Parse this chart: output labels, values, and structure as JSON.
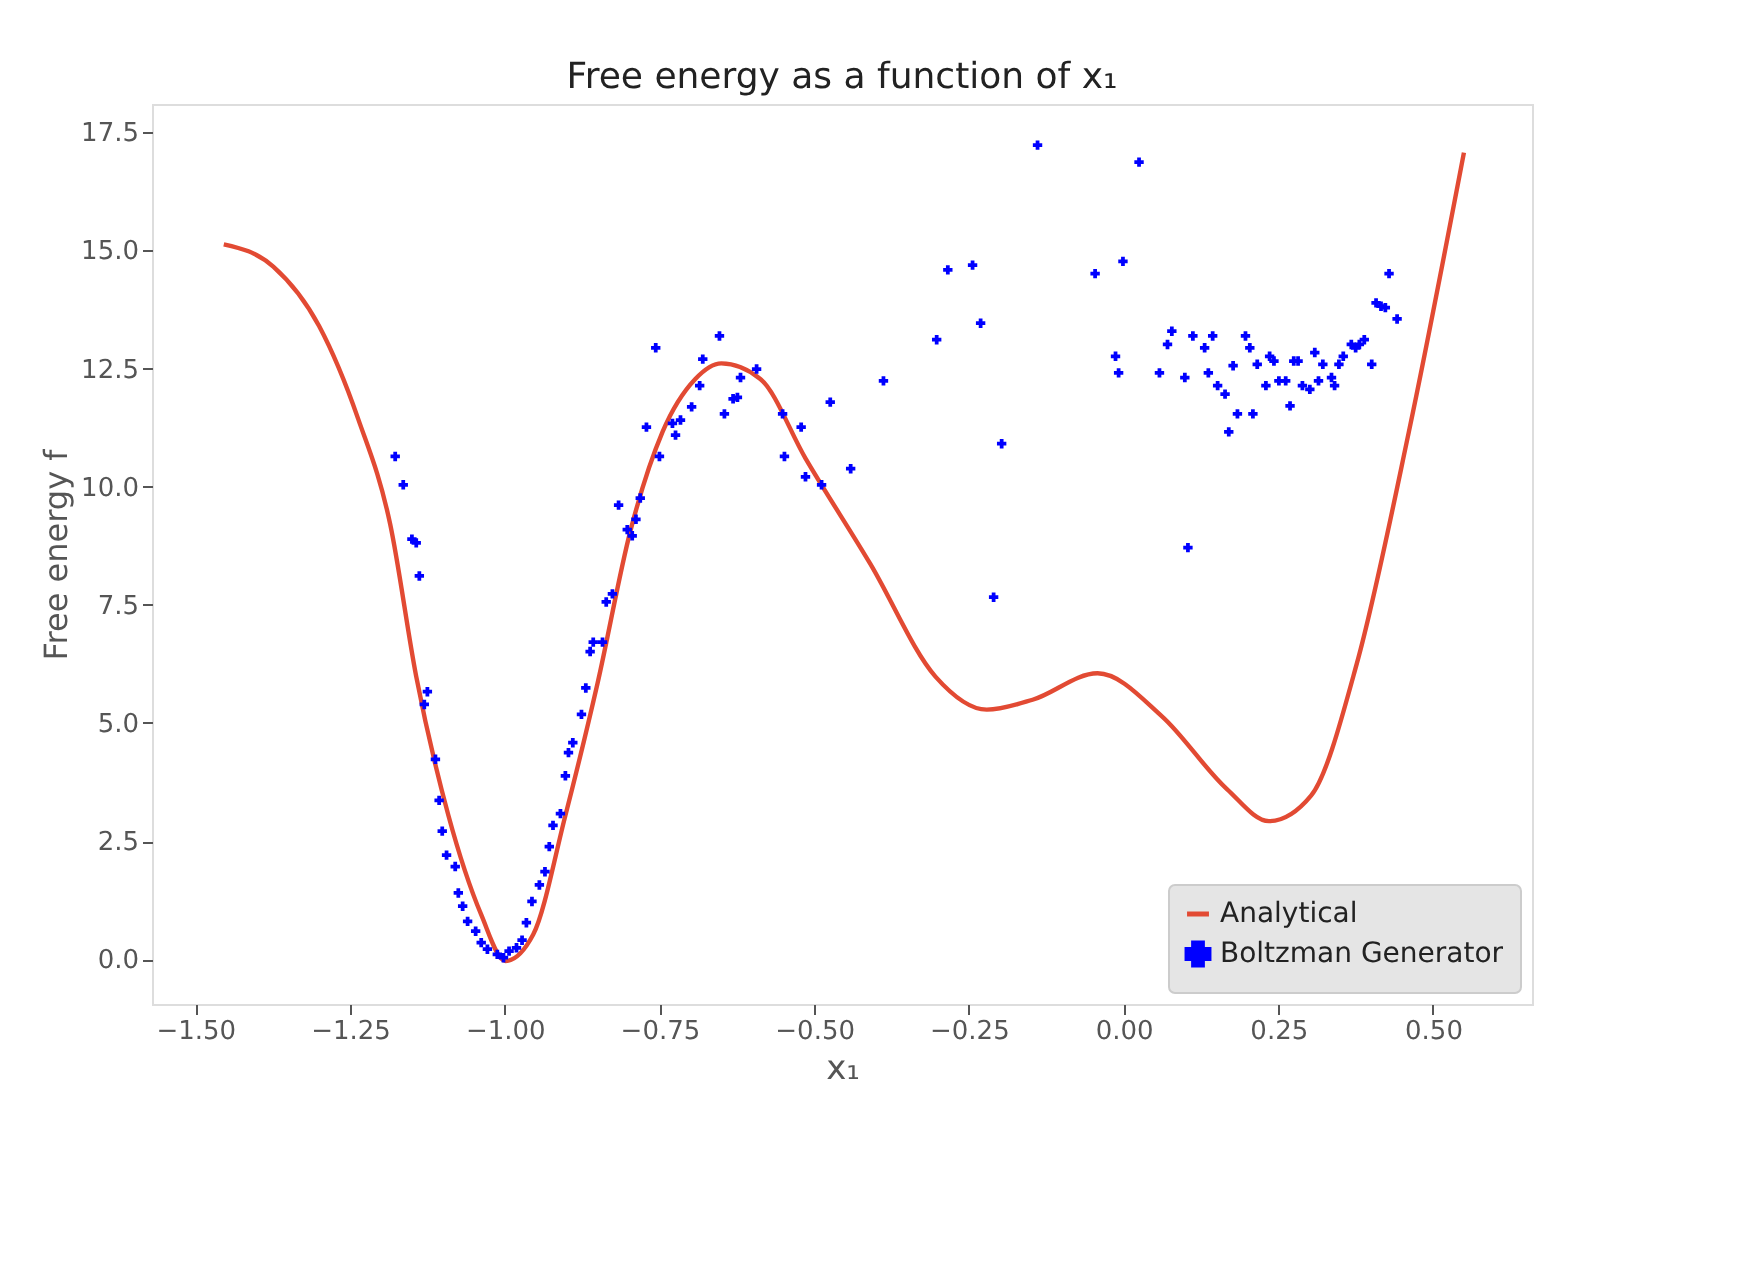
{
  "chart_data": {
    "type": "line",
    "title": "Free energy as a function of x₁",
    "xlabel": "x₁",
    "ylabel": "Free energy f",
    "xlim": [
      -1.57,
      0.66
    ],
    "ylim": [
      -0.95,
      18.1
    ],
    "xticks": [
      {
        "value": -1.5,
        "label": "−1.50"
      },
      {
        "value": -1.25,
        "label": "−1.25"
      },
      {
        "value": -1.0,
        "label": "−1.00"
      },
      {
        "value": -0.75,
        "label": "−0.75"
      },
      {
        "value": -0.5,
        "label": "−0.50"
      },
      {
        "value": -0.25,
        "label": "−0.25"
      },
      {
        "value": 0,
        "label": "0.00"
      },
      {
        "value": 0.25,
        "label": "0.25"
      },
      {
        "value": 0.5,
        "label": "0.50"
      }
    ],
    "yticks": [
      {
        "value": 0,
        "label": "0.0"
      },
      {
        "value": 2.5,
        "label": "2.5"
      },
      {
        "value": 5,
        "label": "5.0"
      },
      {
        "value": 7.5,
        "label": "7.5"
      },
      {
        "value": 10,
        "label": "10.0"
      },
      {
        "value": 12.5,
        "label": "12.5"
      },
      {
        "value": 15,
        "label": "15.0"
      },
      {
        "value": 17.5,
        "label": "17.5"
      }
    ],
    "grid": false,
    "legend": "bottom right",
    "series": [
      {
        "name": "Analytical",
        "type": "line",
        "color": "#e24a33",
        "line_style": "solid",
        "x": [
          -1.454,
          -1.374,
          -1.3,
          -1.237,
          -1.185,
          -1.143,
          -1.091,
          -1.038,
          -0.999,
          -0.954,
          -0.902,
          -0.85,
          -0.797,
          -0.745,
          -0.692,
          -0.65,
          -0.587,
          -0.514,
          -0.409,
          -0.304,
          -0.221,
          -0.147,
          -0.042,
          0.062,
          0.167,
          0.235,
          0.303,
          0.377,
          0.461,
          0.55
        ],
        "values": [
          15.13,
          14.66,
          13.4,
          11.44,
          9.2,
          5.98,
          3.04,
          0.94,
          -0.04,
          0.52,
          3.04,
          5.84,
          9.06,
          11.16,
          12.28,
          12.61,
          12.28,
          10.6,
          8.36,
          5.98,
          5.28,
          5.49,
          6.05,
          5.14,
          3.6,
          2.92,
          3.46,
          6.26,
          11.16,
          17.07
        ]
      },
      {
        "name": "Boltzman Generator",
        "type": "scatter",
        "color": "#0000ff",
        "marker": "cross",
        "x": [
          -1.177,
          -1.164,
          -1.15,
          -1.143,
          -1.138,
          -1.125,
          -1.13,
          -1.112,
          -1.106,
          -1.101,
          -1.094,
          -1.08,
          -1.075,
          -1.068,
          -1.06,
          -1.047,
          -1.038,
          -1.028,
          -1.012,
          -1.002,
          -0.993,
          -0.981,
          -0.972,
          -0.965,
          -0.956,
          -0.944,
          -0.935,
          -0.928,
          -0.922,
          -0.91,
          -0.902,
          -0.897,
          -0.89,
          -0.876,
          -0.869,
          -0.862,
          -0.857,
          -0.842,
          -0.836,
          -0.826,
          -0.816,
          -0.802,
          -0.794,
          -0.788,
          -0.781,
          -0.771,
          -0.756,
          -0.75,
          -0.729,
          -0.724,
          -0.716,
          -0.698,
          -0.685,
          -0.68,
          -0.653,
          -0.645,
          -0.631,
          -0.624,
          -0.619,
          -0.593,
          -0.551,
          -0.548,
          -0.521,
          -0.514,
          -0.488,
          -0.474,
          -0.441,
          -0.388,
          -0.302,
          -0.284,
          -0.244,
          -0.231,
          -0.21,
          -0.197,
          -0.139,
          -0.046,
          -0.013,
          -0.008,
          -0.001,
          0.025,
          0.058,
          0.071,
          0.078,
          0.099,
          0.104,
          0.112,
          0.131,
          0.137,
          0.144,
          0.152,
          0.164,
          0.17,
          0.177,
          0.184,
          0.197,
          0.204,
          0.209,
          0.216,
          0.23,
          0.236,
          0.243,
          0.251,
          0.262,
          0.269,
          0.275,
          0.282,
          0.289,
          0.301,
          0.309,
          0.315,
          0.322,
          0.336,
          0.341,
          0.348,
          0.355,
          0.368,
          0.375,
          0.381,
          0.389,
          0.401,
          0.408,
          0.416,
          0.423,
          0.429,
          0.442
        ],
        "values": [
          10.64,
          10.04,
          8.89,
          8.81,
          8.11,
          5.66,
          5.39,
          4.23,
          3.36,
          2.71,
          2.2,
          1.96,
          1.4,
          1.12,
          0.8,
          0.59,
          0.35,
          0.21,
          0.1,
          0.03,
          0.17,
          0.24,
          0.4,
          0.77,
          1.22,
          1.57,
          1.85,
          2.38,
          2.83,
          3.08,
          3.88,
          4.37,
          4.58,
          5.18,
          5.74,
          6.51,
          6.71,
          6.71,
          7.56,
          7.73,
          9.61,
          9.09,
          8.96,
          9.31,
          9.76,
          11.26,
          12.94,
          10.64,
          11.34,
          11.09,
          11.41,
          11.69,
          12.14,
          12.7,
          13.19,
          11.54,
          11.86,
          11.89,
          12.31,
          12.49,
          11.54,
          10.64,
          11.26,
          10.21,
          10.04,
          11.79,
          10.38,
          12.24,
          13.11,
          14.59,
          14.69,
          13.46,
          7.66,
          10.91,
          17.23,
          14.51,
          12.76,
          12.41,
          14.77,
          16.87,
          12.41,
          13.01,
          13.29,
          12.31,
          8.71,
          13.19,
          12.94,
          12.41,
          13.19,
          12.14,
          11.96,
          11.16,
          12.56,
          11.54,
          13.19,
          12.94,
          11.54,
          12.59,
          12.14,
          12.76,
          12.66,
          12.24,
          12.24,
          11.71,
          12.66,
          12.66,
          12.14,
          12.06,
          12.84,
          12.24,
          12.59,
          12.31,
          12.14,
          12.59,
          12.76,
          13.01,
          12.94,
          13.01,
          13.11,
          12.59,
          13.89,
          13.82,
          13.79,
          14.51,
          13.55
        ]
      }
    ]
  }
}
